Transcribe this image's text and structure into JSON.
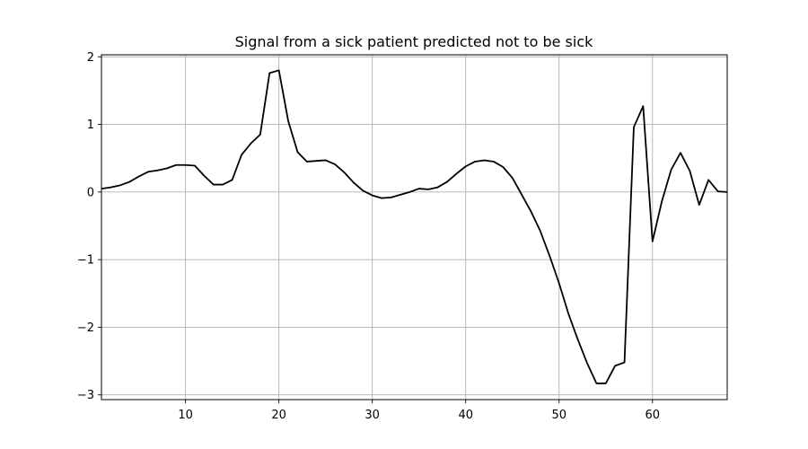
{
  "chart_data": {
    "type": "line",
    "title": "Signal from a sick patient predicted not to be sick",
    "xlabel": "",
    "ylabel": "",
    "xlim": [
      1,
      68
    ],
    "ylim": [
      -3.07,
      2.03
    ],
    "xticks": [
      10,
      20,
      30,
      40,
      50,
      60
    ],
    "yticks": [
      2,
      1,
      0,
      -1,
      -2,
      -3
    ],
    "xtick_labels": [
      "10",
      "20",
      "30",
      "40",
      "50",
      "60"
    ],
    "ytick_labels": [
      "2",
      "1",
      "0",
      "−1",
      "−2",
      "−3"
    ],
    "grid": true,
    "line_color": "#000000",
    "grid_color": "#b0b0b0",
    "series": [
      {
        "x": [
          1,
          2,
          3,
          4,
          5,
          6,
          7,
          8,
          9,
          10,
          11,
          12,
          13,
          14,
          15,
          16,
          17,
          18,
          19,
          20,
          21,
          22,
          23,
          24,
          25,
          26,
          27,
          28,
          29,
          30,
          31,
          32,
          33,
          34,
          35,
          36,
          37,
          38,
          39,
          40,
          41,
          42,
          43,
          44,
          45,
          46,
          47,
          48,
          49,
          50,
          51,
          52,
          53,
          54,
          55,
          56,
          57,
          58,
          59,
          60,
          61,
          62,
          63,
          64,
          65,
          66,
          67,
          68
        ],
        "values": [
          0.05,
          0.07,
          0.1,
          0.15,
          0.23,
          0.3,
          0.32,
          0.35,
          0.4,
          0.4,
          0.39,
          0.24,
          0.11,
          0.11,
          0.18,
          0.55,
          0.72,
          0.85,
          1.76,
          1.8,
          1.05,
          0.59,
          0.45,
          0.46,
          0.47,
          0.41,
          0.29,
          0.14,
          0.02,
          -0.05,
          -0.09,
          -0.08,
          -0.04,
          0.0,
          0.05,
          0.04,
          0.07,
          0.15,
          0.27,
          0.38,
          0.45,
          0.47,
          0.45,
          0.37,
          0.21,
          -0.04,
          -0.29,
          -0.58,
          -0.95,
          -1.35,
          -1.8,
          -2.18,
          -2.53,
          -2.83,
          -2.83,
          -2.57,
          -2.52,
          0.96,
          1.27,
          -0.73,
          -0.14,
          0.33,
          0.58,
          0.31,
          -0.19,
          0.18,
          0.01,
          0.0
        ]
      }
    ]
  }
}
